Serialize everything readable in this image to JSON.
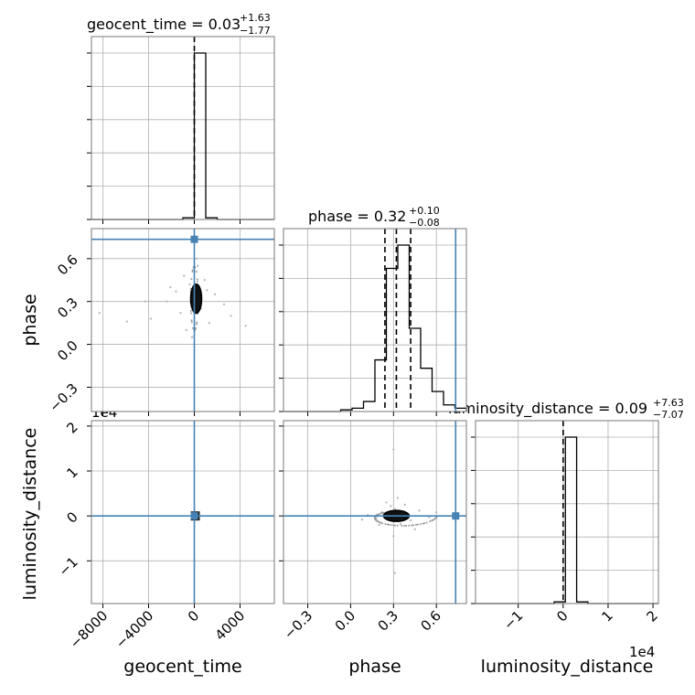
{
  "figure": {
    "type": "corner-plot"
  },
  "chart_data": {
    "type": "scatter",
    "parameters": [
      {
        "name": "geocent_time",
        "label": "geocent_time",
        "title": "geocent_time",
        "median": "0.03",
        "plus": "+1.63",
        "minus": "−1.77",
        "range": [
          -9000,
          7000
        ],
        "ticks": [
          -8000,
          -4000,
          0,
          4000
        ],
        "tick_labels": [
          "−8000",
          "−4000",
          "0",
          "4000"
        ],
        "truth": 0
      },
      {
        "name": "phase",
        "label": "phase",
        "title": "phase",
        "median": "0.32",
        "plus": "+0.10",
        "minus": "−0.08",
        "range": [
          -0.47,
          0.81
        ],
        "ticks": [
          -0.3,
          0.0,
          0.3,
          0.6
        ],
        "tick_labels": [
          "−0.3",
          "0.0",
          "0.3",
          "0.6"
        ],
        "truth": 0.735,
        "quantiles": [
          0.24,
          0.32,
          0.42
        ]
      },
      {
        "name": "luminosity_distance",
        "label": "luminosity_distance",
        "title": "luminosity_distance",
        "median": "0.09",
        "plus": "+7.63",
        "minus": "−7.07",
        "range": [
          -1.95,
          2.12
        ],
        "ticks": [
          -1,
          0,
          1,
          2
        ],
        "tick_labels": [
          "−1",
          "0",
          "1",
          "2"
        ],
        "offset": "1e4",
        "truth": 0
      }
    ],
    "hist_phase": {
      "edges": [
        -0.47,
        -0.39,
        -0.31,
        -0.23,
        -0.15,
        -0.07,
        0.01,
        0.09,
        0.17,
        0.25,
        0.33,
        0.41,
        0.49,
        0.57,
        0.65,
        0.73,
        0.81
      ],
      "counts": [
        0,
        0,
        0,
        0,
        0,
        0.01,
        0.02,
        0.06,
        0.31,
        0.86,
        1.0,
        0.5,
        0.26,
        0.12,
        0.04,
        0.02
      ]
    },
    "hist_geocent_time": {
      "edges": [
        -9000,
        -8000,
        -7000,
        -6000,
        -5000,
        -4000,
        -3000,
        -2000,
        -1000,
        0,
        1000,
        2000,
        3000,
        4000,
        5000,
        6000,
        7000
      ],
      "counts": [
        0,
        0,
        0,
        0,
        0,
        0,
        0,
        0,
        0.01,
        1.0,
        0.01,
        0,
        0,
        0,
        0,
        0
      ]
    },
    "hist_luminosity_distance": {
      "edges": [
        -1.95,
        -1.7,
        -1.45,
        -1.2,
        -0.95,
        -0.7,
        -0.45,
        -0.2,
        0.05,
        0.3,
        0.55,
        0.8,
        1.05,
        1.3,
        1.55,
        1.8,
        2.12
      ],
      "counts": [
        0,
        0,
        0,
        0,
        0,
        0,
        0,
        0.01,
        1.0,
        0.01,
        0,
        0,
        0,
        0,
        0,
        0
      ]
    },
    "scatter_geocent_time_phase": [
      [
        -1600,
        0.37
      ],
      [
        -2100,
        0.4
      ],
      [
        -1200,
        0.22
      ],
      [
        1800,
        0.35
      ],
      [
        2600,
        0.28
      ],
      [
        -3800,
        0.18
      ],
      [
        900,
        0.45
      ],
      [
        -700,
        0.1
      ],
      [
        300,
        0.55
      ],
      [
        1300,
        0.15
      ],
      [
        -2400,
        0.3
      ],
      [
        3200,
        0.2
      ],
      [
        -200,
        0.05
      ],
      [
        600,
        0.25
      ],
      [
        -900,
        0.48
      ],
      [
        200,
        0.6
      ],
      [
        1100,
        0.38
      ],
      [
        -400,
        0.42
      ],
      [
        4500,
        0.13
      ],
      [
        -8300,
        0.22
      ],
      [
        -5900,
        0.16
      ],
      [
        -4300,
        0.3
      ]
    ],
    "scatter_phase_luminosity_distance": [
      [
        0.31,
        0.15
      ],
      [
        0.28,
        0.22
      ],
      [
        0.35,
        -0.18
      ],
      [
        0.22,
        0.08
      ],
      [
        0.42,
        -0.1
      ],
      [
        0.18,
        -0.05
      ],
      [
        0.48,
        0.12
      ],
      [
        0.33,
        0.4
      ],
      [
        0.3,
        -0.45
      ],
      [
        0.25,
        0.3
      ],
      [
        0.38,
        0.25
      ],
      [
        0.12,
        0.02
      ],
      [
        0.55,
        -0.03
      ],
      [
        0.3,
        1.48
      ],
      [
        0.31,
        -1.27
      ],
      [
        0.45,
        -0.3
      ],
      [
        0.2,
        -0.2
      ],
      [
        0.36,
        0.05
      ],
      [
        0.6,
        0.08
      ],
      [
        0.08,
        -0.08
      ]
    ]
  }
}
